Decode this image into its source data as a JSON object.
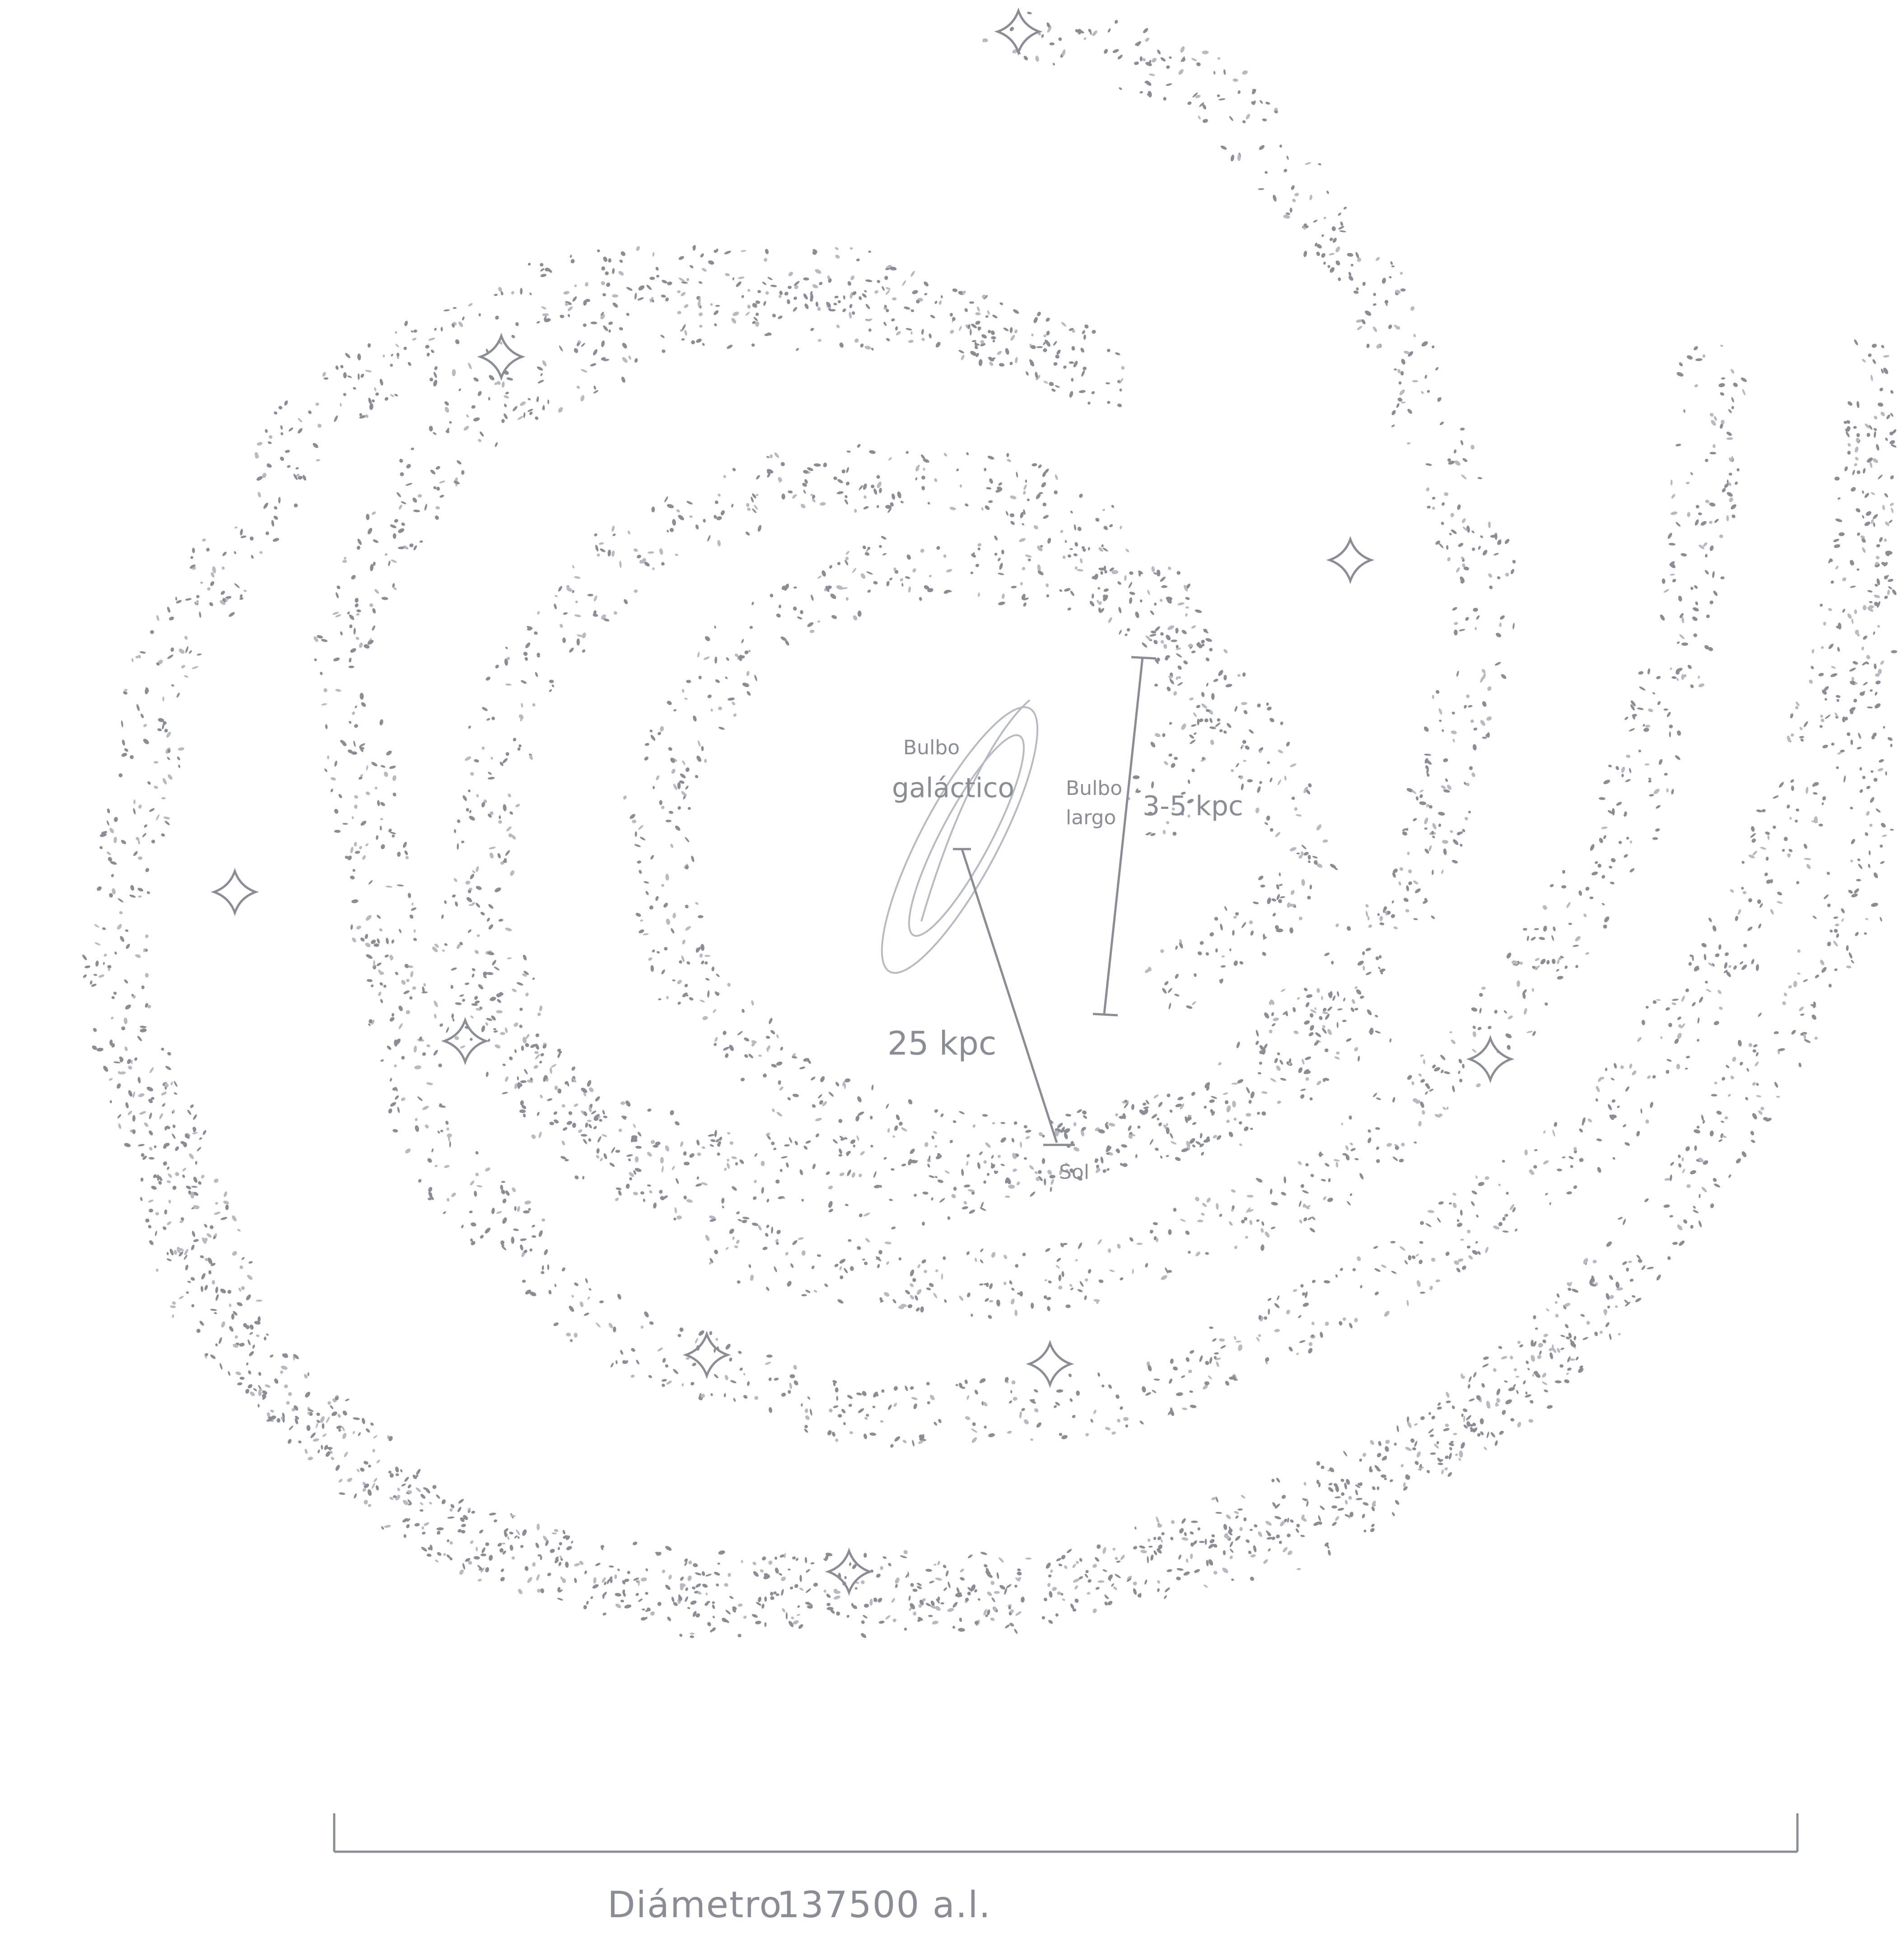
{
  "labels": {
    "bulge_line1": "Bulbo",
    "bulge_line2": "galáctico",
    "bar_line1": "Bulbo",
    "bar_line2": "largo",
    "bar_length": "3-5 kpc",
    "sun_distance": "25 kpc",
    "sun": "Sol",
    "diameter_label": "Diámetro",
    "diameter_value": "137500 a.l."
  },
  "colors": {
    "pencil": "#8a8d96",
    "pencil_light": "#b7bac2",
    "paper": "#ffffff"
  },
  "icons": {
    "star": "four-point-star-icon"
  }
}
